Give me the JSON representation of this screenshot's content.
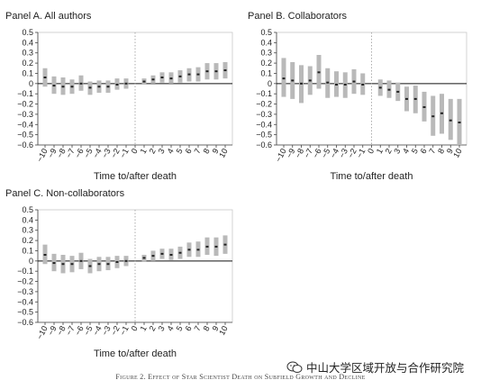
{
  "figure": {
    "caption": "Figure 2. Effect of Star Scientist Death on Subfield Growth and Decline",
    "watermark": "中山大学区域开放与合作研究院",
    "watermark_icon": "wechat-icon"
  },
  "chart_data": [
    {
      "type": "scatter",
      "title": "Panel A. All authors",
      "xlabel": "Time to/after death",
      "ylabel": "",
      "ylim": [
        -0.6,
        0.5
      ],
      "yticks": [
        "0.5",
        "0.4",
        "0.3",
        "0.2",
        "0.1",
        "0",
        "−0.1",
        "−0.2",
        "−0.3",
        "−0.4",
        "−0.5",
        "−0.6"
      ],
      "xticks": [
        "−10",
        "−9",
        "−8",
        "−7",
        "−6",
        "−5",
        "−4",
        "−3",
        "−2",
        "−1",
        "0",
        "1",
        "2",
        "3",
        "4",
        "5",
        "6",
        "7",
        "8",
        "9",
        "10"
      ],
      "event_line_x": 0,
      "points": [
        {
          "x": -10,
          "y": 0.06,
          "lo": -0.03,
          "hi": 0.15
        },
        {
          "x": -9,
          "y": -0.02,
          "lo": -0.1,
          "hi": 0.07
        },
        {
          "x": -8,
          "y": -0.03,
          "lo": -0.11,
          "hi": 0.06
        },
        {
          "x": -7,
          "y": -0.03,
          "lo": -0.1,
          "hi": 0.04
        },
        {
          "x": -6,
          "y": 0.0,
          "lo": -0.07,
          "hi": 0.08
        },
        {
          "x": -5,
          "y": -0.04,
          "lo": -0.11,
          "hi": 0.02
        },
        {
          "x": -4,
          "y": -0.03,
          "lo": -0.09,
          "hi": 0.03
        },
        {
          "x": -3,
          "y": -0.03,
          "lo": -0.09,
          "hi": 0.03
        },
        {
          "x": -2,
          "y": -0.01,
          "lo": -0.06,
          "hi": 0.05
        },
        {
          "x": -1,
          "y": 0.0,
          "lo": -0.05,
          "hi": 0.05
        },
        {
          "x": 1,
          "y": 0.02,
          "lo": -0.01,
          "hi": 0.05
        },
        {
          "x": 2,
          "y": 0.04,
          "lo": 0.0,
          "hi": 0.08
        },
        {
          "x": 3,
          "y": 0.06,
          "lo": 0.01,
          "hi": 0.11
        },
        {
          "x": 4,
          "y": 0.05,
          "lo": 0.0,
          "hi": 0.11
        },
        {
          "x": 5,
          "y": 0.07,
          "lo": 0.01,
          "hi": 0.13
        },
        {
          "x": 6,
          "y": 0.09,
          "lo": 0.02,
          "hi": 0.15
        },
        {
          "x": 7,
          "y": 0.09,
          "lo": 0.02,
          "hi": 0.16
        },
        {
          "x": 8,
          "y": 0.12,
          "lo": 0.04,
          "hi": 0.2
        },
        {
          "x": 9,
          "y": 0.12,
          "lo": 0.04,
          "hi": 0.2
        },
        {
          "x": 10,
          "y": 0.13,
          "lo": 0.05,
          "hi": 0.21
        }
      ]
    },
    {
      "type": "scatter",
      "title": "Panel B. Collaborators",
      "xlabel": "Time to/after death",
      "ylabel": "",
      "ylim": [
        -0.6,
        0.5
      ],
      "yticks": [
        "0.5",
        "0.4",
        "0.3",
        "0.2",
        "0.1",
        "0",
        "−0.1",
        "−0.2",
        "−0.3",
        "−0.4",
        "−0.5",
        "−0.6"
      ],
      "xticks": [
        "−10",
        "−9",
        "−8",
        "−7",
        "−6",
        "−5",
        "−4",
        "−3",
        "−2",
        "−1",
        "0",
        "1",
        "2",
        "3",
        "4",
        "5",
        "6",
        "7",
        "8",
        "9",
        "10"
      ],
      "event_line_x": 0,
      "points": [
        {
          "x": -10,
          "y": 0.05,
          "lo": -0.13,
          "hi": 0.25
        },
        {
          "x": -9,
          "y": 0.03,
          "lo": -0.15,
          "hi": 0.21
        },
        {
          "x": -8,
          "y": 0.0,
          "lo": -0.19,
          "hi": 0.18
        },
        {
          "x": -7,
          "y": 0.03,
          "lo": -0.11,
          "hi": 0.17
        },
        {
          "x": -6,
          "y": 0.11,
          "lo": -0.05,
          "hi": 0.28
        },
        {
          "x": -5,
          "y": 0.01,
          "lo": -0.14,
          "hi": 0.15
        },
        {
          "x": -4,
          "y": -0.01,
          "lo": -0.13,
          "hi": 0.12
        },
        {
          "x": -3,
          "y": -0.01,
          "lo": -0.14,
          "hi": 0.11
        },
        {
          "x": -2,
          "y": 0.02,
          "lo": -0.1,
          "hi": 0.14
        },
        {
          "x": -1,
          "y": -0.01,
          "lo": -0.11,
          "hi": 0.1
        },
        {
          "x": 1,
          "y": -0.04,
          "lo": -0.12,
          "hi": 0.04
        },
        {
          "x": 2,
          "y": -0.06,
          "lo": -0.14,
          "hi": 0.03
        },
        {
          "x": 3,
          "y": -0.08,
          "lo": -0.17,
          "hi": 0.01
        },
        {
          "x": 4,
          "y": -0.15,
          "lo": -0.27,
          "hi": -0.03
        },
        {
          "x": 5,
          "y": -0.15,
          "lo": -0.29,
          "hi": -0.02
        },
        {
          "x": 6,
          "y": -0.23,
          "lo": -0.37,
          "hi": -0.08
        },
        {
          "x": 7,
          "y": -0.32,
          "lo": -0.51,
          "hi": -0.12
        },
        {
          "x": 8,
          "y": -0.29,
          "lo": -0.49,
          "hi": -0.1
        },
        {
          "x": 9,
          "y": -0.36,
          "lo": -0.55,
          "hi": -0.15
        },
        {
          "x": 10,
          "y": -0.38,
          "lo": -0.6,
          "hi": -0.15
        }
      ]
    },
    {
      "type": "scatter",
      "title": "Panel C. Non-collaborators",
      "xlabel": "Time to/after death",
      "ylabel": "",
      "ylim": [
        -0.6,
        0.5
      ],
      "yticks": [
        "0.5",
        "0.4",
        "0.3",
        "0.2",
        "0.1",
        "0",
        "−0.1",
        "−0.2",
        "−0.3",
        "−0.4",
        "−0.5",
        "−0.6"
      ],
      "xticks": [
        "−10",
        "−9",
        "−8",
        "−7",
        "−6",
        "−5",
        "−4",
        "−3",
        "−2",
        "−1",
        "0",
        "1",
        "2",
        "3",
        "4",
        "5",
        "6",
        "7",
        "8",
        "9",
        "10"
      ],
      "event_line_x": 0,
      "points": [
        {
          "x": -10,
          "y": 0.06,
          "lo": -0.03,
          "hi": 0.16
        },
        {
          "x": -9,
          "y": -0.02,
          "lo": -0.1,
          "hi": 0.07
        },
        {
          "x": -8,
          "y": -0.03,
          "lo": -0.12,
          "hi": 0.06
        },
        {
          "x": -7,
          "y": -0.03,
          "lo": -0.11,
          "hi": 0.05
        },
        {
          "x": -6,
          "y": 0.0,
          "lo": -0.08,
          "hi": 0.08
        },
        {
          "x": -5,
          "y": -0.05,
          "lo": -0.12,
          "hi": 0.02
        },
        {
          "x": -4,
          "y": -0.03,
          "lo": -0.1,
          "hi": 0.04
        },
        {
          "x": -3,
          "y": -0.03,
          "lo": -0.09,
          "hi": 0.04
        },
        {
          "x": -2,
          "y": -0.01,
          "lo": -0.07,
          "hi": 0.05
        },
        {
          "x": -1,
          "y": 0.0,
          "lo": -0.05,
          "hi": 0.05
        },
        {
          "x": 1,
          "y": 0.03,
          "lo": -0.01,
          "hi": 0.06
        },
        {
          "x": 2,
          "y": 0.05,
          "lo": 0.0,
          "hi": 0.1
        },
        {
          "x": 3,
          "y": 0.07,
          "lo": 0.02,
          "hi": 0.12
        },
        {
          "x": 4,
          "y": 0.06,
          "lo": 0.01,
          "hi": 0.12
        },
        {
          "x": 5,
          "y": 0.08,
          "lo": 0.02,
          "hi": 0.14
        },
        {
          "x": 6,
          "y": 0.11,
          "lo": 0.04,
          "hi": 0.18
        },
        {
          "x": 7,
          "y": 0.11,
          "lo": 0.04,
          "hi": 0.19
        },
        {
          "x": 8,
          "y": 0.14,
          "lo": 0.06,
          "hi": 0.23
        },
        {
          "x": 9,
          "y": 0.14,
          "lo": 0.05,
          "hi": 0.23
        },
        {
          "x": 10,
          "y": 0.16,
          "lo": 0.07,
          "hi": 0.25
        }
      ]
    }
  ]
}
